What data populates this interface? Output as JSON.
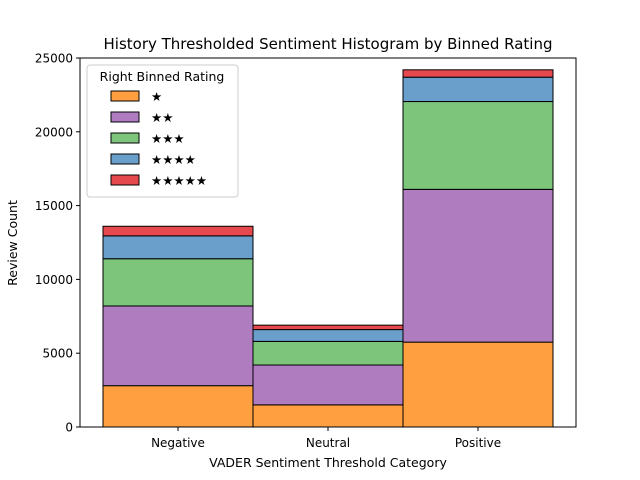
{
  "chart_data": {
    "type": "bar",
    "title": "History Thresholded Sentiment Histogram by Binned Rating",
    "xlabel": "VADER Sentiment Threshold Category",
    "ylabel": "Review Count",
    "categories": [
      "Negative",
      "Neutral",
      "Positive"
    ],
    "ylim": [
      0,
      25000
    ],
    "yticks": [
      0,
      5000,
      10000,
      15000,
      20000,
      25000
    ],
    "stacked": true,
    "grid": false,
    "legend": {
      "title": "Right Binned Rating",
      "placement": "top-left"
    },
    "series": [
      {
        "name": "★",
        "color": "#ff9f40",
        "values": [
          2800,
          1500,
          5750
        ]
      },
      {
        "name": "★★",
        "color": "#b07cc0",
        "values": [
          5400,
          2700,
          10350
        ]
      },
      {
        "name": "★★★",
        "color": "#7cc57b",
        "values": [
          3200,
          1600,
          5950
        ]
      },
      {
        "name": "★★★★",
        "color": "#6a9fcc",
        "values": [
          1550,
          800,
          1650
        ]
      },
      {
        "name": "★★★★★",
        "color": "#e5494e",
        "values": [
          650,
          300,
          500
        ]
      }
    ]
  }
}
